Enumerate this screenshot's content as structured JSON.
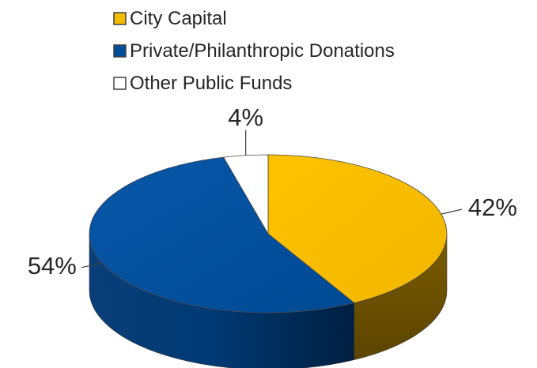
{
  "chart_data": {
    "type": "pie",
    "style": "3d",
    "legend_position": "top",
    "slices": [
      {
        "name": "City Capital",
        "value": 42,
        "label": "42%",
        "color": "#F5BD00",
        "side_color": "#6E5200"
      },
      {
        "name": "Private/Philanthropic Donations",
        "value": 54,
        "label": "54%",
        "color": "#004D99",
        "side_color": "#00396F"
      },
      {
        "name": "Other Public Funds",
        "value": 4,
        "label": "4%",
        "color": "#FFFFFF",
        "side_color": "#D9D9D9"
      }
    ]
  }
}
